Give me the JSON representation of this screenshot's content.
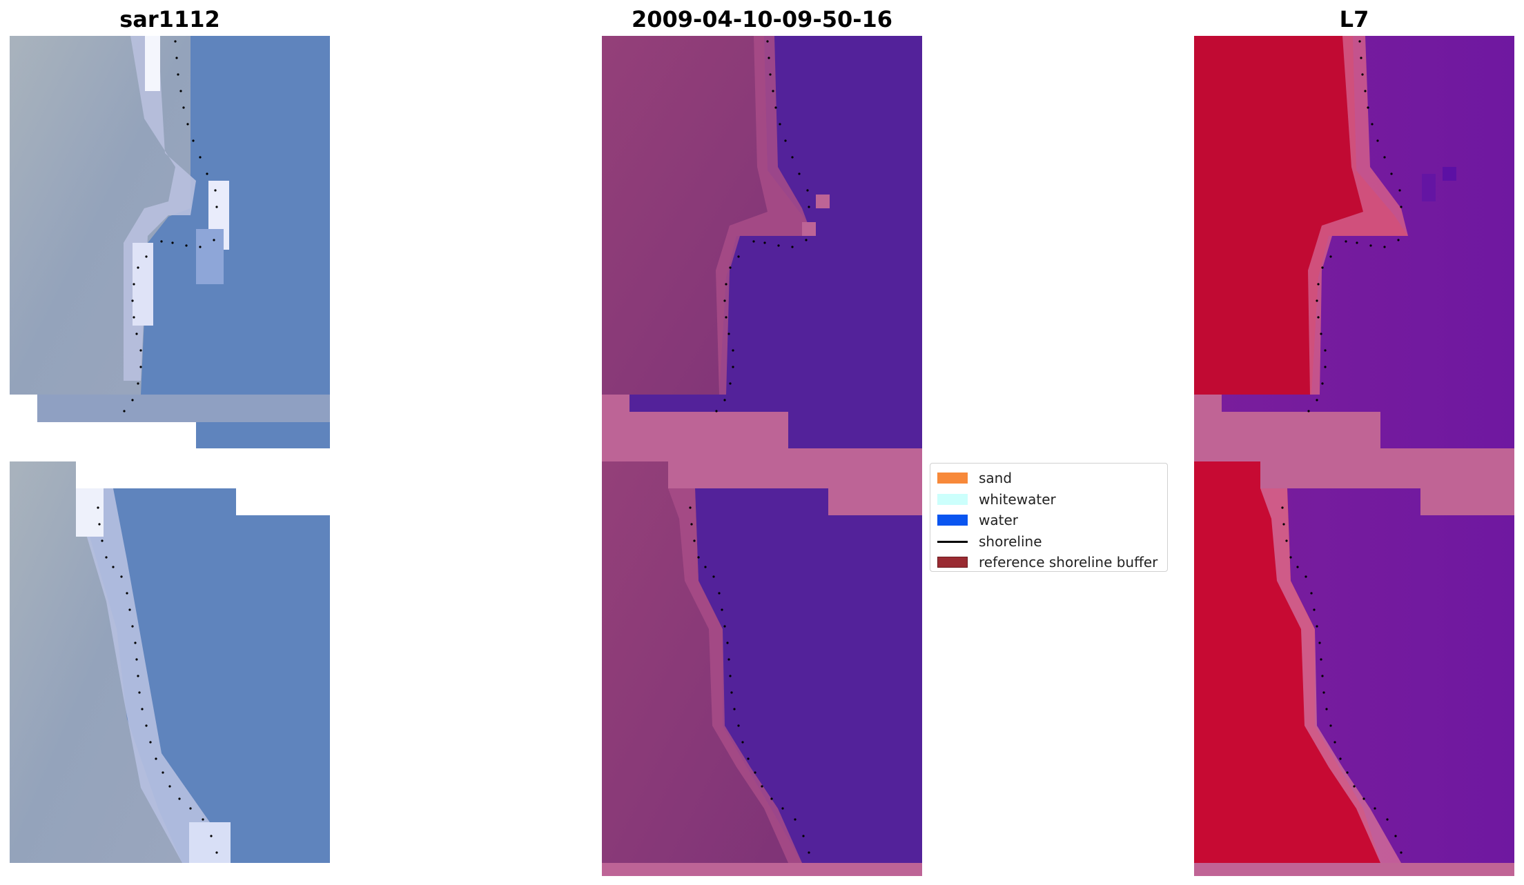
{
  "panels": [
    {
      "title": "sar1112"
    },
    {
      "title": "2009-04-10-09-50-16"
    },
    {
      "title": "L7"
    }
  ],
  "legend": {
    "items": [
      {
        "label": "sand",
        "color": "#f7893a"
      },
      {
        "label": "whitewater",
        "color": "#ccfffc"
      },
      {
        "label": "water",
        "color": "#0a55f0"
      },
      {
        "label": "shoreline",
        "color": "#000000"
      },
      {
        "label": "reference shoreline buffer",
        "color": "#9a2b32"
      }
    ]
  },
  "colors": {
    "rgb_land": "#a3aebb",
    "rgb_water": "#5c82bd",
    "rgb_whitewater": "#e8ecfb",
    "class_land": "#8c3d78",
    "class_water": "#53229a",
    "class_buffer": "#bd6496",
    "ndwi_land": "#c00a33",
    "ndwi_water": "#731b9f",
    "ndwi_buffer": "#c06495"
  }
}
